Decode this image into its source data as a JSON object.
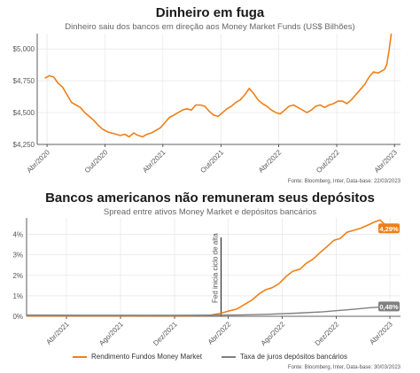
{
  "colors": {
    "orange": "#F07F16",
    "gray": "#808080",
    "axis": "#333333",
    "grid": "#e6e6e6"
  },
  "chart_data": [
    {
      "type": "line",
      "title": "Dinheiro em fuga",
      "subtitle": "Dinheiro saiu dos bancos em direção aos Money Market Funds (US$ Bilhões)",
      "source": "Fonte: Bloomberg, Inter, Data-base: 22/03/2023",
      "x_ticks": [
        "Abr/2020",
        "Out/2020",
        "Abr/2021",
        "Out/2021",
        "Abr/2022",
        "Out/2022",
        "Abr/2023"
      ],
      "y_ticks": [
        "$4,250",
        "$4,500",
        "$4,750",
        "$5,000"
      ],
      "ylim": [
        4250,
        5120
      ],
      "grid": true,
      "series": [
        {
          "color": "#F07F16",
          "x": [
            "2020-03-25",
            "2020-04-08",
            "2020-04-22",
            "2020-05-06",
            "2020-05-20",
            "2020-06-03",
            "2020-06-17",
            "2020-07-01",
            "2020-07-15",
            "2020-07-29",
            "2020-08-12",
            "2020-08-26",
            "2020-09-09",
            "2020-09-23",
            "2020-10-07",
            "2020-10-21",
            "2020-11-04",
            "2020-11-18",
            "2020-12-02",
            "2020-12-16",
            "2020-12-30",
            "2021-01-13",
            "2021-01-27",
            "2021-02-10",
            "2021-02-24",
            "2021-03-10",
            "2021-03-24",
            "2021-04-07",
            "2021-04-21",
            "2021-05-05",
            "2021-05-19",
            "2021-06-02",
            "2021-06-16",
            "2021-06-30",
            "2021-07-14",
            "2021-07-28",
            "2021-08-11",
            "2021-08-25",
            "2021-09-08",
            "2021-09-22",
            "2021-10-06",
            "2021-10-20",
            "2021-11-03",
            "2021-11-17",
            "2021-12-01",
            "2021-12-15",
            "2021-12-29",
            "2022-01-12",
            "2022-01-26",
            "2022-02-09",
            "2022-02-23",
            "2022-03-09",
            "2022-03-23",
            "2022-04-06",
            "2022-04-20",
            "2022-05-04",
            "2022-05-18",
            "2022-06-01",
            "2022-06-15",
            "2022-06-29",
            "2022-07-13",
            "2022-07-27",
            "2022-08-10",
            "2022-08-24",
            "2022-09-07",
            "2022-09-21",
            "2022-10-05",
            "2022-10-19",
            "2022-11-02",
            "2022-11-16",
            "2022-11-30",
            "2022-12-14",
            "2022-12-28",
            "2023-01-11",
            "2023-01-25",
            "2023-02-08",
            "2023-02-22",
            "2023-03-01",
            "2023-03-08",
            "2023-03-15",
            "2023-03-22"
          ],
          "values": [
            4770,
            4790,
            4780,
            4730,
            4700,
            4640,
            4580,
            4560,
            4540,
            4500,
            4470,
            4440,
            4400,
            4370,
            4350,
            4340,
            4330,
            4320,
            4330,
            4310,
            4340,
            4320,
            4310,
            4330,
            4340,
            4360,
            4380,
            4420,
            4460,
            4480,
            4500,
            4520,
            4530,
            4520,
            4560,
            4560,
            4550,
            4510,
            4480,
            4470,
            4500,
            4530,
            4550,
            4580,
            4600,
            4640,
            4690,
            4650,
            4600,
            4570,
            4550,
            4520,
            4500,
            4490,
            4520,
            4550,
            4560,
            4540,
            4520,
            4500,
            4520,
            4550,
            4560,
            4540,
            4560,
            4570,
            4590,
            4590,
            4570,
            4600,
            4640,
            4680,
            4720,
            4780,
            4820,
            4810,
            4830,
            4840,
            4880,
            4990,
            5120
          ]
        }
      ]
    },
    {
      "type": "line",
      "title": "Bancos americanos não remuneram seus depósitos",
      "subtitle": "Spread entre ativos Money Market e depósitos bancários",
      "source": "Fonte: Bloomberg, Inter, Data-base: 30/03/2023",
      "x_ticks": [
        "Abr/2021",
        "Ago/2021",
        "Dez/2021",
        "Abr/2022",
        "Ago/2022",
        "Dez/2022",
        "Abr/2023"
      ],
      "y_ticks": [
        "0%",
        "1%",
        "2%",
        "3%",
        "4%"
      ],
      "ylim": [
        0,
        4.8
      ],
      "grid": true,
      "annotation": {
        "date": "2022-03-16",
        "text": "Fed inicia ciclo de alta"
      },
      "series": [
        {
          "name": "Rendimento Fundos Money Market",
          "color": "#F07F16",
          "end_label": "4,29%",
          "x": [
            "2021-01-01",
            "2021-03-01",
            "2021-05-01",
            "2021-07-01",
            "2021-09-01",
            "2021-11-01",
            "2022-01-01",
            "2022-02-15",
            "2022-03-16",
            "2022-04-01",
            "2022-04-20",
            "2022-05-10",
            "2022-05-25",
            "2022-06-10",
            "2022-06-25",
            "2022-07-10",
            "2022-07-25",
            "2022-08-10",
            "2022-08-25",
            "2022-09-10",
            "2022-09-25",
            "2022-10-10",
            "2022-10-25",
            "2022-11-10",
            "2022-11-25",
            "2022-12-10",
            "2022-12-25",
            "2023-01-10",
            "2023-01-25",
            "2023-02-10",
            "2023-02-25",
            "2023-03-10",
            "2023-03-30"
          ],
          "values": [
            0.02,
            0.02,
            0.02,
            0.02,
            0.02,
            0.03,
            0.03,
            0.04,
            0.15,
            0.25,
            0.35,
            0.6,
            0.8,
            1.1,
            1.3,
            1.4,
            1.6,
            1.95,
            2.2,
            2.3,
            2.6,
            2.8,
            3.1,
            3.4,
            3.7,
            3.8,
            4.1,
            4.2,
            4.3,
            4.45,
            4.6,
            4.7,
            4.29
          ]
        },
        {
          "name": "Taxa de juros depósitos bancários",
          "color": "#808080",
          "end_label": "0,48%",
          "x": [
            "2021-01-01",
            "2021-06-01",
            "2021-12-01",
            "2022-03-16",
            "2022-05-01",
            "2022-07-01",
            "2022-09-01",
            "2022-11-01",
            "2023-01-01",
            "2023-02-15",
            "2023-03-30"
          ],
          "values": [
            0.06,
            0.05,
            0.05,
            0.06,
            0.07,
            0.1,
            0.15,
            0.22,
            0.33,
            0.42,
            0.48
          ]
        }
      ],
      "legend": [
        "Rendimento Fundos Money Market",
        "Taxa de juros depósitos bancários"
      ],
      "legend_position": "bottom"
    }
  ]
}
